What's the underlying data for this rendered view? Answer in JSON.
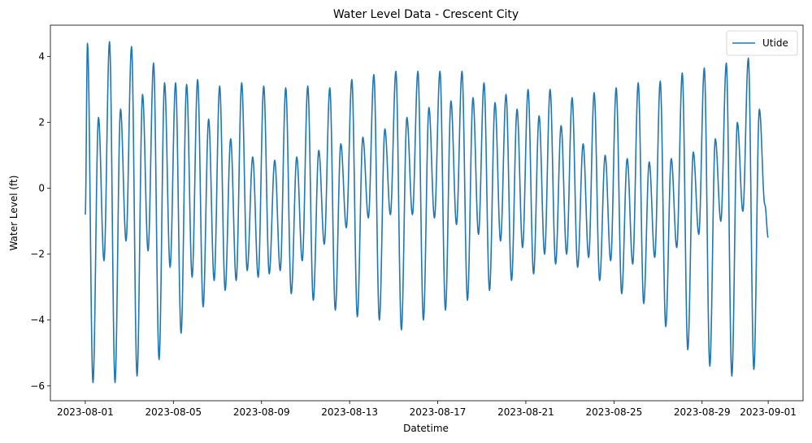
{
  "chart_data": {
    "type": "line",
    "title": "Water Level Data - Crescent City",
    "xlabel": "Datetime",
    "ylabel": "Water Level (ft)",
    "x_start": "2023-08-01",
    "x_end": "2023-09-01",
    "xlim": [
      "2023-07-30T10:00",
      "2023-09-02T14:00"
    ],
    "ylim": [
      -6.45,
      4.95
    ],
    "x_ticks": [
      "2023-08-01",
      "2023-08-05",
      "2023-08-09",
      "2023-08-13",
      "2023-08-17",
      "2023-08-21",
      "2023-08-25",
      "2023-08-29",
      "2023-09-01"
    ],
    "y_ticks": [
      -6,
      -4,
      -2,
      0,
      2,
      4
    ],
    "y_tick_labels": [
      "−6",
      "−4",
      "−2",
      "0",
      "2",
      "4"
    ],
    "legend_position": "top-right",
    "grid": false,
    "series": [
      {
        "name": "Utide",
        "color": "#1f77b4",
        "start_value": -0.8,
        "end_value": -1.5,
        "higher_high_values": [
          4.4,
          4.45,
          4.3,
          3.8,
          3.2,
          3.3,
          3.1,
          3.2,
          3.1,
          3.05,
          3.1,
          3.05,
          3.3,
          3.45,
          3.55,
          3.55,
          3.55,
          3.55,
          3.2,
          2.85,
          3.0,
          3.0,
          2.75,
          2.9,
          3.05,
          3.2,
          3.25,
          3.5,
          3.65,
          3.8,
          3.95
        ],
        "higher_low_values": [
          -2.2,
          -1.6,
          -1.9,
          -2.4,
          -2.7,
          -2.8,
          -2.8,
          -2.7,
          -2.5,
          -2.2,
          -1.7,
          -1.2,
          -0.9,
          -0.8,
          -0.8,
          -0.9,
          -1.1,
          -1.4,
          -1.6,
          -1.8,
          -2.0,
          -2.0,
          -2.1,
          -2.2,
          -2.3,
          -2.1,
          -1.8,
          -1.4,
          -1.0,
          -0.7,
          -0.5
        ],
        "lower_high_values": [
          2.15,
          2.4,
          2.85,
          3.2,
          3.15,
          2.1,
          1.5,
          0.95,
          0.85,
          0.95,
          1.15,
          1.35,
          1.55,
          1.8,
          2.15,
          2.45,
          2.65,
          2.75,
          2.6,
          2.4,
          2.2,
          1.9,
          1.35,
          1.0,
          0.9,
          0.8,
          0.9,
          1.1,
          1.5,
          2.0,
          2.4
        ],
        "lower_low_values": [
          -5.9,
          -5.9,
          -5.7,
          -5.2,
          -4.4,
          -3.6,
          -3.1,
          -2.5,
          -2.6,
          -3.2,
          -3.4,
          -3.7,
          -3.9,
          -4.0,
          -4.3,
          -4.0,
          -3.7,
          -3.4,
          -3.1,
          -2.8,
          -2.6,
          -2.3,
          -2.4,
          -2.8,
          -3.2,
          -3.5,
          -4.2,
          -4.9,
          -5.4,
          -5.7,
          -5.5
        ]
      }
    ]
  }
}
